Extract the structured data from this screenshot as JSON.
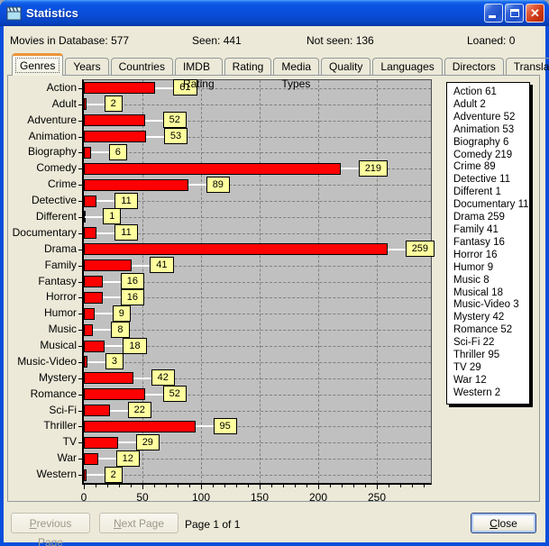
{
  "window": {
    "title": "Statistics",
    "controls": [
      "minimize",
      "maximize",
      "close"
    ]
  },
  "icons": {
    "titlebar": "clapperboard-icon",
    "minimize": "minimize-icon",
    "maximize": "maximize-icon",
    "close": "close-x-icon"
  },
  "colors": {
    "titlebar_blue": "#0a4edc",
    "dialog_bg": "#ece9d8",
    "active_tab_accent": "#ed9438",
    "bar_red": "#ff0000",
    "value_label_yellow": "#ffff9e",
    "plot_gray": "#c0c0c0"
  },
  "stats": [
    {
      "label": "Movies in Database:",
      "value": "577"
    },
    {
      "label": "Seen:",
      "value": "441"
    },
    {
      "label": "Not seen:",
      "value": "136"
    },
    {
      "label": "Loaned:",
      "value": "0"
    }
  ],
  "tabs": {
    "active": "Genres",
    "items": [
      "Genres",
      "Years",
      "Countries",
      "IMDB Rating",
      "Rating",
      "Media Types",
      "Quality",
      "Languages",
      "Directors",
      "Translations"
    ]
  },
  "chart_data": {
    "type": "bar",
    "orientation": "horizontal",
    "title": "",
    "xlabel": "",
    "ylabel": "",
    "categories": [
      "Action",
      "Adult",
      "Adventure",
      "Animation",
      "Biography",
      "Comedy",
      "Crime",
      "Detective",
      "Different",
      "Documentary",
      "Drama",
      "Family",
      "Fantasy",
      "Horror",
      "Humor",
      "Music",
      "Musical",
      "Music-Video",
      "Mystery",
      "Romance",
      "Sci-Fi",
      "Thriller",
      "TV",
      "War",
      "Western"
    ],
    "values": [
      61,
      2,
      52,
      53,
      6,
      219,
      89,
      11,
      1,
      11,
      259,
      41,
      16,
      16,
      9,
      8,
      18,
      3,
      42,
      52,
      22,
      95,
      29,
      12,
      2
    ],
    "x_ticks": [
      0,
      50,
      100,
      150,
      200,
      250
    ],
    "xlim": [
      0,
      290
    ],
    "grid": true,
    "grid_style": "dashed",
    "plot_bg": "#c0c0c0",
    "bar_color": "#ff0000",
    "value_label_bg": "#ffff9e",
    "legend_position": "right",
    "legend_format": "category value"
  },
  "footer": {
    "previous": "Previous Page",
    "next": "Next Page",
    "page_status": "Page 1 of 1",
    "close": "Close"
  }
}
